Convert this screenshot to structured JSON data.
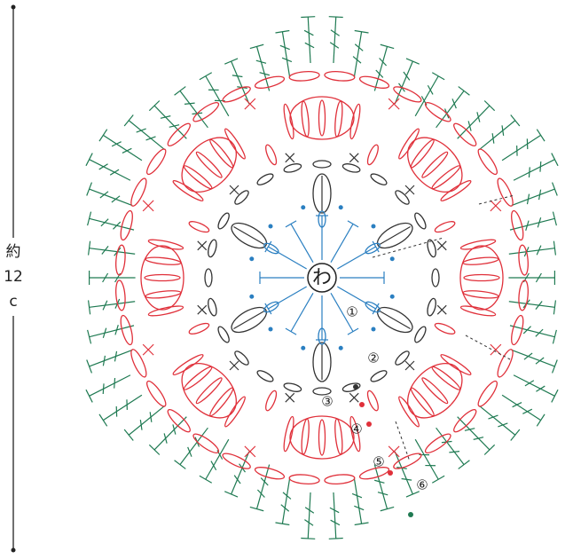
{
  "ruler": {
    "label": [
      "約",
      "12",
      "c"
    ]
  },
  "center": "わ",
  "rounds": [
    "①",
    "②",
    "③",
    "④",
    "⑤",
    "⑥"
  ]
}
